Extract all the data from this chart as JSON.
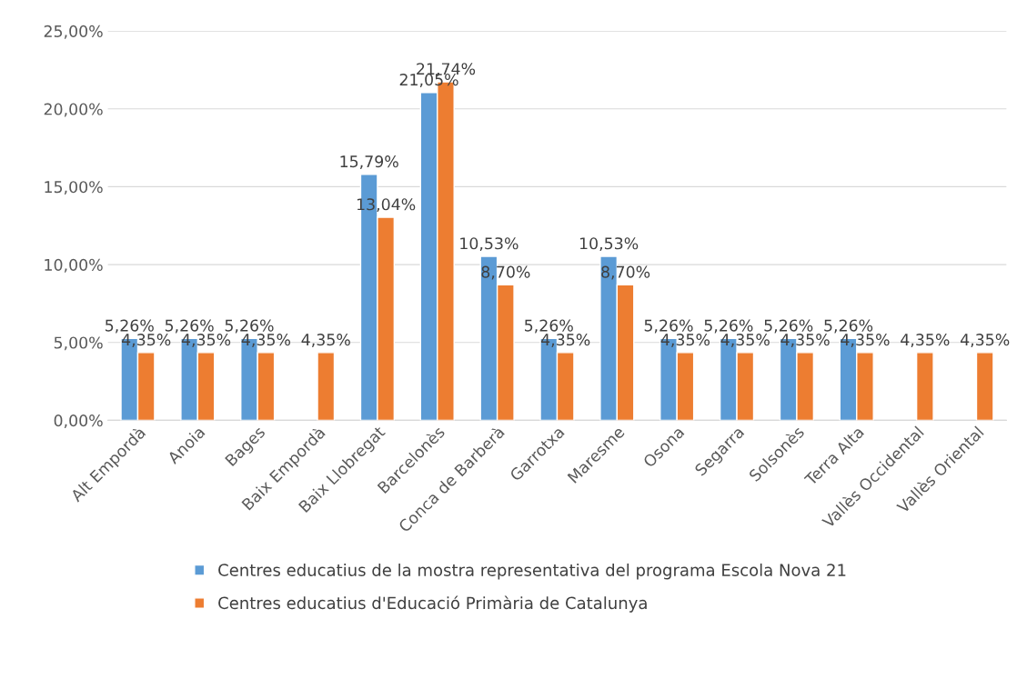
{
  "chart_data": {
    "type": "bar",
    "categories": [
      "Alt Empordà",
      "Anoia",
      "Bages",
      "Baix Empordà",
      "Baix Llobregat",
      "Barcelonès",
      "Conca de Barberà",
      "Garrotxa",
      "Maresme",
      "Osona",
      "Segarra",
      "Solsonès",
      "Terra Alta",
      "Vallès Occidental",
      "Vallès Oriental"
    ],
    "series": [
      {
        "name": "Centres educatius de la mostra representativa del programa Escola Nova 21",
        "color": "#5b9bd5",
        "values": [
          5.26,
          5.26,
          5.26,
          null,
          15.79,
          21.05,
          10.53,
          5.26,
          10.53,
          5.26,
          5.26,
          5.26,
          5.26,
          null,
          null
        ],
        "value_labels": [
          "5,26%",
          "5,26%",
          "5,26%",
          null,
          "15,79%",
          "21,05%",
          "10,53%",
          "5,26%",
          "10,53%",
          "5,26%",
          "5,26%",
          "5,26%",
          "5,26%",
          null,
          null
        ]
      },
      {
        "name": "Centres educatius d'Educació Primària de Catalunya",
        "color": "#ed7d31",
        "values": [
          4.35,
          4.35,
          4.35,
          4.35,
          13.04,
          21.74,
          8.7,
          4.35,
          8.7,
          4.35,
          4.35,
          4.35,
          4.35,
          4.35,
          4.35
        ],
        "value_labels": [
          "4,35%",
          "4,35%",
          "4,35%",
          "4,35%",
          "13,04%",
          "21,74%",
          "8,70%",
          "4,35%",
          "8,70%",
          "4,35%",
          "4,35%",
          "4,35%",
          "4,35%",
          "4,35%",
          "4,35%"
        ]
      }
    ],
    "ylim": [
      0,
      25
    ],
    "yticks": [
      {
        "value": 0,
        "label": "0,00%"
      },
      {
        "value": 5,
        "label": "5,00%"
      },
      {
        "value": 10,
        "label": "10,00%"
      },
      {
        "value": 15,
        "label": "15,00%"
      },
      {
        "value": 20,
        "label": "20,00%"
      },
      {
        "value": 25,
        "label": "25,00%"
      }
    ],
    "grid": "y",
    "legend": "bottom"
  }
}
